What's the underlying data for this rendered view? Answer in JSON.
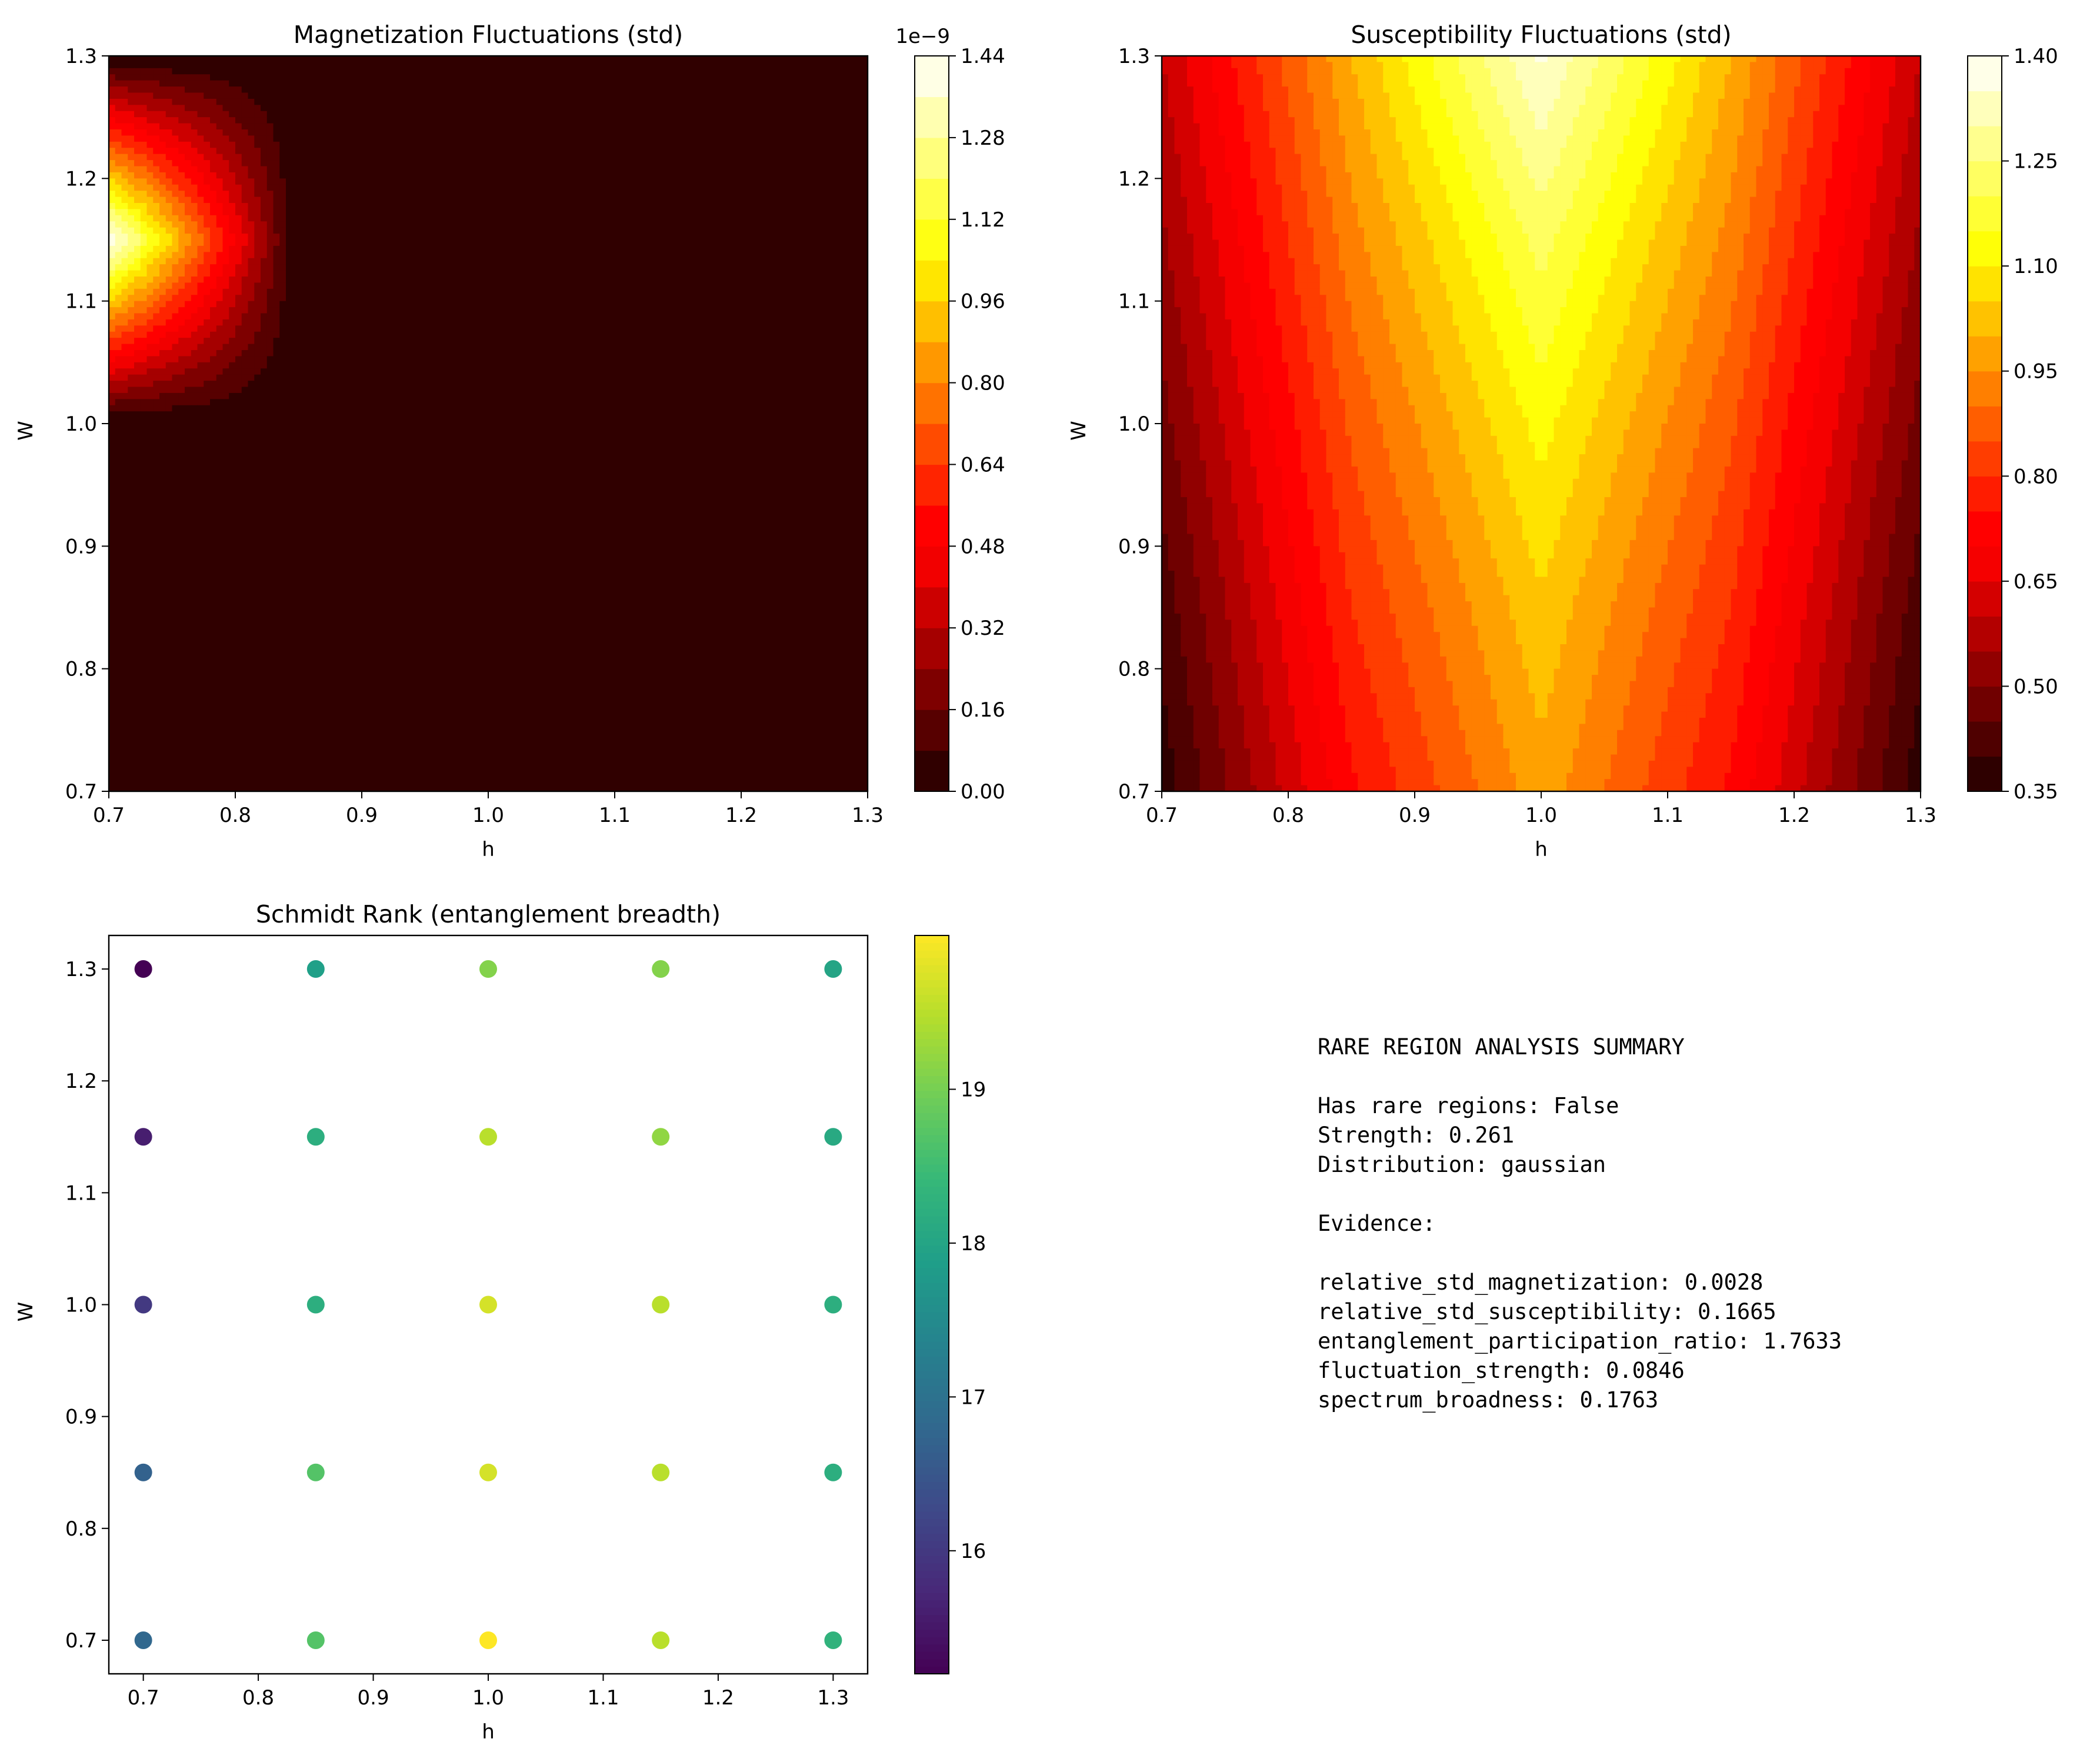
{
  "chart_data": [
    {
      "type": "heatmap",
      "title": "Magnetization Fluctuations (std)",
      "xlabel": "h",
      "ylabel": "W",
      "x": [
        0.7,
        0.85,
        1.0,
        1.15,
        1.3
      ],
      "y": [
        0.7,
        0.85,
        1.0,
        1.15,
        1.3
      ],
      "z": [
        [
          0,
          0,
          0,
          0,
          0
        ],
        [
          0,
          0,
          0,
          0,
          0
        ],
        [
          0,
          0,
          0,
          0,
          0
        ],
        [
          1.44e-09,
          0,
          0,
          0,
          0
        ],
        [
          0,
          0,
          0,
          0,
          0
        ]
      ],
      "xlim": [
        0.7,
        1.3
      ],
      "ylim": [
        0.7,
        1.3
      ],
      "xticks": [
        "0.7",
        "0.8",
        "0.9",
        "1.0",
        "1.1",
        "1.2",
        "1.3"
      ],
      "yticks": [
        "0.7",
        "0.8",
        "0.9",
        "1.0",
        "1.1",
        "1.2",
        "1.3"
      ],
      "colorbar": {
        "colormap": "hot",
        "levels": [
          0,
          1.44e-09
        ],
        "n_bands": 18,
        "ticks": [
          "0.00",
          "0.16",
          "0.32",
          "0.48",
          "0.64",
          "0.80",
          "0.96",
          "1.12",
          "1.28",
          "1.44"
        ],
        "offset_label": "1e−9"
      },
      "grid": false
    },
    {
      "type": "heatmap",
      "title": "Susceptibility Fluctuations (std)",
      "xlabel": "h",
      "ylabel": "W",
      "x": [
        0.7,
        0.85,
        1.0,
        1.15,
        1.3
      ],
      "y": [
        0.7,
        0.85,
        1.0,
        1.15,
        1.3
      ],
      "z": [
        [
          0.37,
          0.74,
          0.98,
          0.74,
          0.37
        ],
        [
          0.42,
          0.8,
          1.04,
          0.8,
          0.42
        ],
        [
          0.48,
          0.86,
          1.12,
          0.86,
          0.48
        ],
        [
          0.54,
          0.93,
          1.22,
          0.93,
          0.54
        ],
        [
          0.6,
          1.0,
          1.36,
          1.0,
          0.6
        ]
      ],
      "xlim": [
        0.7,
        1.3
      ],
      "ylim": [
        0.7,
        1.3
      ],
      "xticks": [
        "0.7",
        "0.8",
        "0.9",
        "1.0",
        "1.1",
        "1.2",
        "1.3"
      ],
      "yticks": [
        "0.7",
        "0.8",
        "0.9",
        "1.0",
        "1.1",
        "1.2",
        "1.3"
      ],
      "colorbar": {
        "colormap": "hot",
        "levels": [
          0.35,
          1.4
        ],
        "n_bands": 21,
        "ticks": [
          "0.35",
          "0.50",
          "0.65",
          "0.80",
          "0.95",
          "1.10",
          "1.25",
          "1.40"
        ]
      },
      "grid": false
    },
    {
      "type": "scatter",
      "title": "Schmidt Rank (entanglement breadth)",
      "xlabel": "h",
      "ylabel": "W",
      "x": [
        0.7,
        0.85,
        1.0,
        1.15,
        1.3
      ],
      "y": [
        0.7,
        0.85,
        1.0,
        1.15,
        1.3
      ],
      "values": [
        [
          16.8,
          18.7,
          20.0,
          19.5,
          18.3
        ],
        [
          16.7,
          18.7,
          19.7,
          19.5,
          18.2
        ],
        [
          16.0,
          18.2,
          19.7,
          19.5,
          18.2
        ],
        [
          15.6,
          18.2,
          19.5,
          19.2,
          18.1
        ],
        [
          15.2,
          17.9,
          19.1,
          19.1,
          18.0
        ]
      ],
      "xlim": [
        0.67,
        1.33
      ],
      "ylim": [
        0.67,
        1.33
      ],
      "xticks": [
        "0.7",
        "0.8",
        "0.9",
        "1.0",
        "1.1",
        "1.2",
        "1.3"
      ],
      "yticks": [
        "0.7",
        "0.8",
        "0.9",
        "1.0",
        "1.1",
        "1.2",
        "1.3"
      ],
      "colorbar": {
        "colormap": "viridis",
        "range": [
          15.2,
          20.0
        ],
        "ticks": [
          "16",
          "17",
          "18",
          "19"
        ]
      },
      "grid": false
    }
  ],
  "summary": {
    "lines": [
      "RARE REGION ANALYSIS SUMMARY",
      "",
      "Has rare regions: False",
      "Strength: 0.261",
      "Distribution: gaussian",
      "",
      "Evidence:",
      "",
      "relative_std_magnetization: 0.0028",
      "relative_std_susceptibility: 0.1665",
      "entanglement_participation_ratio: 1.7633",
      "fluctuation_strength: 0.0846",
      "spectrum_broadness: 0.1763"
    ]
  }
}
